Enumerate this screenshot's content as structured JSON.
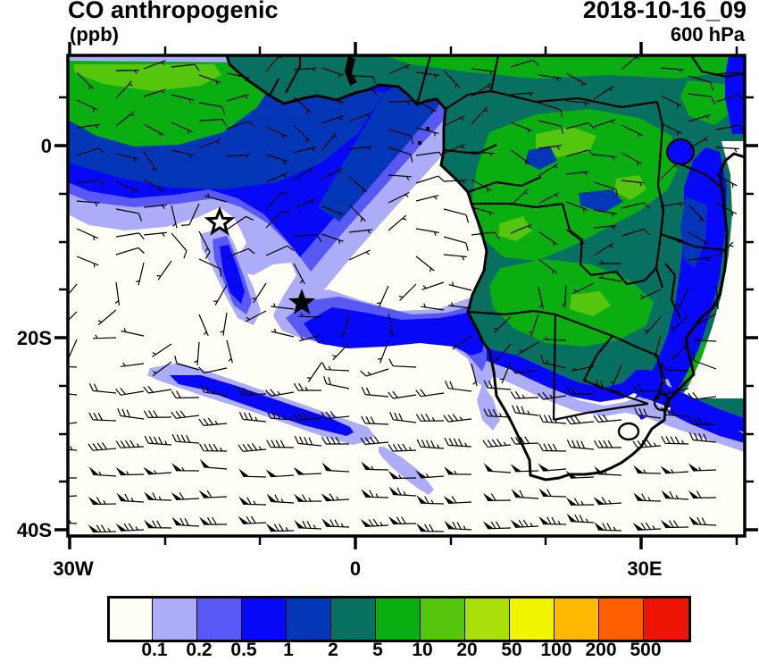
{
  "header": {
    "title": "CO anthropogenic",
    "units": "(ppb)",
    "datetime": "2018-10-16_09",
    "level": "600 hPa"
  },
  "axes": {
    "y_ticks": [
      "0",
      "20S",
      "40S"
    ],
    "x_ticks": [
      "30W",
      "0",
      "30E"
    ]
  },
  "colorbar": {
    "labels": [
      "0.1",
      "0.2",
      "0.5",
      "1",
      "2",
      "5",
      "10",
      "20",
      "50",
      "100",
      "200",
      "500"
    ],
    "colors": [
      "#FFFFF8",
      "#ACACF8",
      "#5858F4",
      "#0808F8",
      "#0437B8",
      "#087060",
      "#0AAE10",
      "#55C50D",
      "#AADF0C",
      "#F2F500",
      "#FFB900",
      "#FF5F00",
      "#EE1406"
    ]
  },
  "chart_data": {
    "type": "heatmap",
    "title": "CO anthropogenic",
    "units": "ppb",
    "datetime": "2018-10-16_09",
    "pressure_level": "600 hPa",
    "projection": "cylindrical lat-lon map, Africa and South Atlantic",
    "lon_range_deg": [
      -30.2,
      40.9
    ],
    "lat_range_deg": [
      -40.7,
      9.4
    ],
    "x_tick_labels": [
      "30W",
      "0",
      "30E"
    ],
    "y_tick_labels": [
      "0",
      "20S",
      "40S"
    ],
    "contour_levels_ppb": [
      0.1,
      0.2,
      0.5,
      1,
      2,
      5,
      10,
      20,
      50,
      100,
      200,
      500
    ],
    "palette_hex": [
      "#FFFFF8",
      "#ACACF8",
      "#5858F4",
      "#0808F8",
      "#0437B8",
      "#087060",
      "#0AAE10",
      "#55C50D",
      "#AADF0C",
      "#F2F500",
      "#FFB900",
      "#FF5F00",
      "#EE1406"
    ],
    "overlays": [
      "wind barbs",
      "coastlines",
      "country borders",
      "lakes",
      "two star station markers"
    ],
    "markers": [
      {
        "style": "open-star",
        "lon": -14.3,
        "lat": -8.0
      },
      {
        "style": "filled-star",
        "lon": -5.6,
        "lat": -16.4
      }
    ],
    "values_summary": "2-20 ppb (teal/green) over equatorial and south-central Africa; 0.1-2 ppb plume (lavender to navy) arcing west over the tropical Atlantic; below 0.1 ppb (white) over the subtropical South Atlantic, interior South Africa and offshore Indian Ocean; thin 0.2-1 ppb filaments near 25S-30S; strong westerlies with 50 kt pennants south of 30S; max shown category 500 ppb not reached on map"
  }
}
